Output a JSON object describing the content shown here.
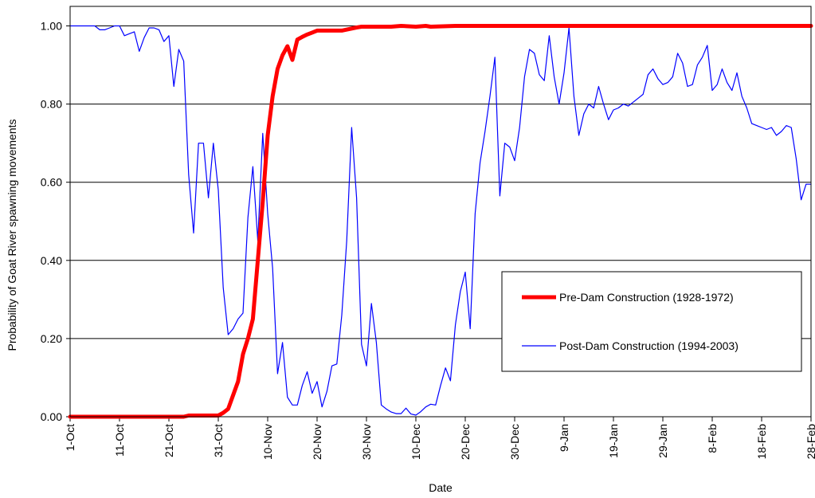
{
  "chart_data": {
    "type": "line",
    "title": "",
    "xlabel": "Date",
    "ylabel": "Probability of Goat River spawning movements",
    "ylim": [
      0,
      1.05
    ],
    "grid": "horizontal",
    "legend_position": "center-right",
    "y_ticks": [
      "0.00",
      "0.20",
      "0.40",
      "0.60",
      "0.80",
      "1.00"
    ],
    "x_ticks": [
      {
        "day": 0,
        "label": "1-Oct"
      },
      {
        "day": 10,
        "label": "11-Oct"
      },
      {
        "day": 20,
        "label": "21-Oct"
      },
      {
        "day": 30,
        "label": "31-Oct"
      },
      {
        "day": 40,
        "label": "10-Nov"
      },
      {
        "day": 50,
        "label": "20-Nov"
      },
      {
        "day": 60,
        "label": "30-Nov"
      },
      {
        "day": 70,
        "label": "10-Dec"
      },
      {
        "day": 80,
        "label": "20-Dec"
      },
      {
        "day": 90,
        "label": "30-Dec"
      },
      {
        "day": 100,
        "label": "9-Jan"
      },
      {
        "day": 110,
        "label": "19-Jan"
      },
      {
        "day": 120,
        "label": "29-Jan"
      },
      {
        "day": 130,
        "label": "8-Feb"
      },
      {
        "day": 140,
        "label": "18-Feb"
      },
      {
        "day": 150,
        "label": "28-Feb"
      }
    ],
    "series": [
      {
        "name": "Pre-Dam Construction (1928-1972)",
        "color": "#ff0000",
        "width": 5,
        "x": [
          0,
          20,
          23,
          24,
          30,
          31,
          32,
          33,
          34,
          35,
          36,
          37,
          38,
          39,
          40,
          41,
          42,
          43,
          44,
          45,
          46,
          47,
          48,
          49,
          50,
          52,
          55,
          58,
          59,
          60,
          65,
          67,
          70,
          72,
          73,
          78,
          79,
          100,
          110,
          120,
          130,
          140,
          150
        ],
        "y": [
          0,
          0,
          0,
          0.003,
          0.003,
          0.01,
          0.02,
          0.055,
          0.09,
          0.16,
          0.2,
          0.25,
          0.4,
          0.55,
          0.72,
          0.82,
          0.89,
          0.925,
          0.948,
          0.913,
          0.965,
          0.972,
          0.978,
          0.983,
          0.988,
          0.988,
          0.988,
          0.996,
          0.998,
          0.998,
          0.998,
          1.0,
          0.998,
          1.0,
          0.998,
          1.0,
          1.0,
          1.0,
          1.0,
          1.0,
          1.0,
          1.0,
          1.0
        ]
      },
      {
        "name": "Post-Dam Construction (1994-2003)",
        "color": "#0000ff",
        "width": 1.2,
        "x": [
          0,
          5,
          6,
          7,
          8,
          9,
          10,
          11,
          12,
          13,
          14,
          15,
          16,
          17,
          18,
          19,
          20,
          21,
          22,
          23,
          24,
          25,
          26,
          27,
          28,
          29,
          30,
          31,
          32,
          33,
          34,
          35,
          36,
          37,
          38,
          39,
          40,
          41,
          42,
          43,
          44,
          45,
          46,
          47,
          48,
          49,
          50,
          51,
          52,
          53,
          54,
          55,
          56,
          57,
          58,
          59,
          60,
          61,
          62,
          63,
          64,
          65,
          66,
          67,
          68,
          69,
          70,
          71,
          72,
          73,
          74,
          75,
          76,
          77,
          78,
          79,
          80,
          81,
          82,
          83,
          84,
          85,
          86,
          87,
          88,
          89,
          90,
          91,
          92,
          93,
          94,
          95,
          96,
          97,
          98,
          99,
          100,
          101,
          102,
          103,
          104,
          105,
          106,
          107,
          108,
          109,
          110,
          111,
          112,
          113,
          114,
          115,
          116,
          117,
          118,
          119,
          120,
          121,
          122,
          123,
          124,
          125,
          126,
          127,
          128,
          129,
          130,
          131,
          132,
          133,
          134,
          135,
          136,
          137,
          138,
          139,
          140,
          141,
          142,
          143,
          144,
          145,
          146,
          147,
          148,
          149,
          150
        ],
        "y": [
          1.0,
          1.0,
          0.99,
          0.99,
          0.995,
          1.0,
          1.0,
          0.975,
          0.98,
          0.985,
          0.935,
          0.97,
          0.995,
          0.995,
          0.99,
          0.96,
          0.975,
          0.845,
          0.94,
          0.91,
          0.62,
          0.47,
          0.7,
          0.7,
          0.56,
          0.7,
          0.58,
          0.33,
          0.21,
          0.225,
          0.25,
          0.265,
          0.51,
          0.64,
          0.45,
          0.725,
          0.52,
          0.38,
          0.11,
          0.19,
          0.05,
          0.03,
          0.03,
          0.08,
          0.115,
          0.06,
          0.09,
          0.025,
          0.065,
          0.13,
          0.135,
          0.26,
          0.45,
          0.74,
          0.56,
          0.185,
          0.13,
          0.29,
          0.19,
          0.03,
          0.02,
          0.012,
          0.008,
          0.008,
          0.022,
          0.007,
          0.004,
          0.013,
          0.025,
          0.032,
          0.03,
          0.08,
          0.125,
          0.092,
          0.235,
          0.32,
          0.37,
          0.225,
          0.52,
          0.65,
          0.73,
          0.82,
          0.92,
          0.565,
          0.7,
          0.69,
          0.655,
          0.74,
          0.87,
          0.94,
          0.93,
          0.875,
          0.86,
          0.975,
          0.87,
          0.8,
          0.88,
          0.995,
          0.82,
          0.72,
          0.775,
          0.8,
          0.79,
          0.845,
          0.8,
          0.76,
          0.785,
          0.79,
          0.8,
          0.795,
          0.805,
          0.815,
          0.825,
          0.875,
          0.89,
          0.865,
          0.85,
          0.855,
          0.87,
          0.93,
          0.905,
          0.845,
          0.85,
          0.9,
          0.92,
          0.95,
          0.835,
          0.85,
          0.89,
          0.855,
          0.835,
          0.88,
          0.82,
          0.79,
          0.75,
          0.745,
          0.74,
          0.735,
          0.74,
          0.72,
          0.73,
          0.745,
          0.74,
          0.66,
          0.555,
          0.595,
          0.595
        ]
      }
    ]
  }
}
